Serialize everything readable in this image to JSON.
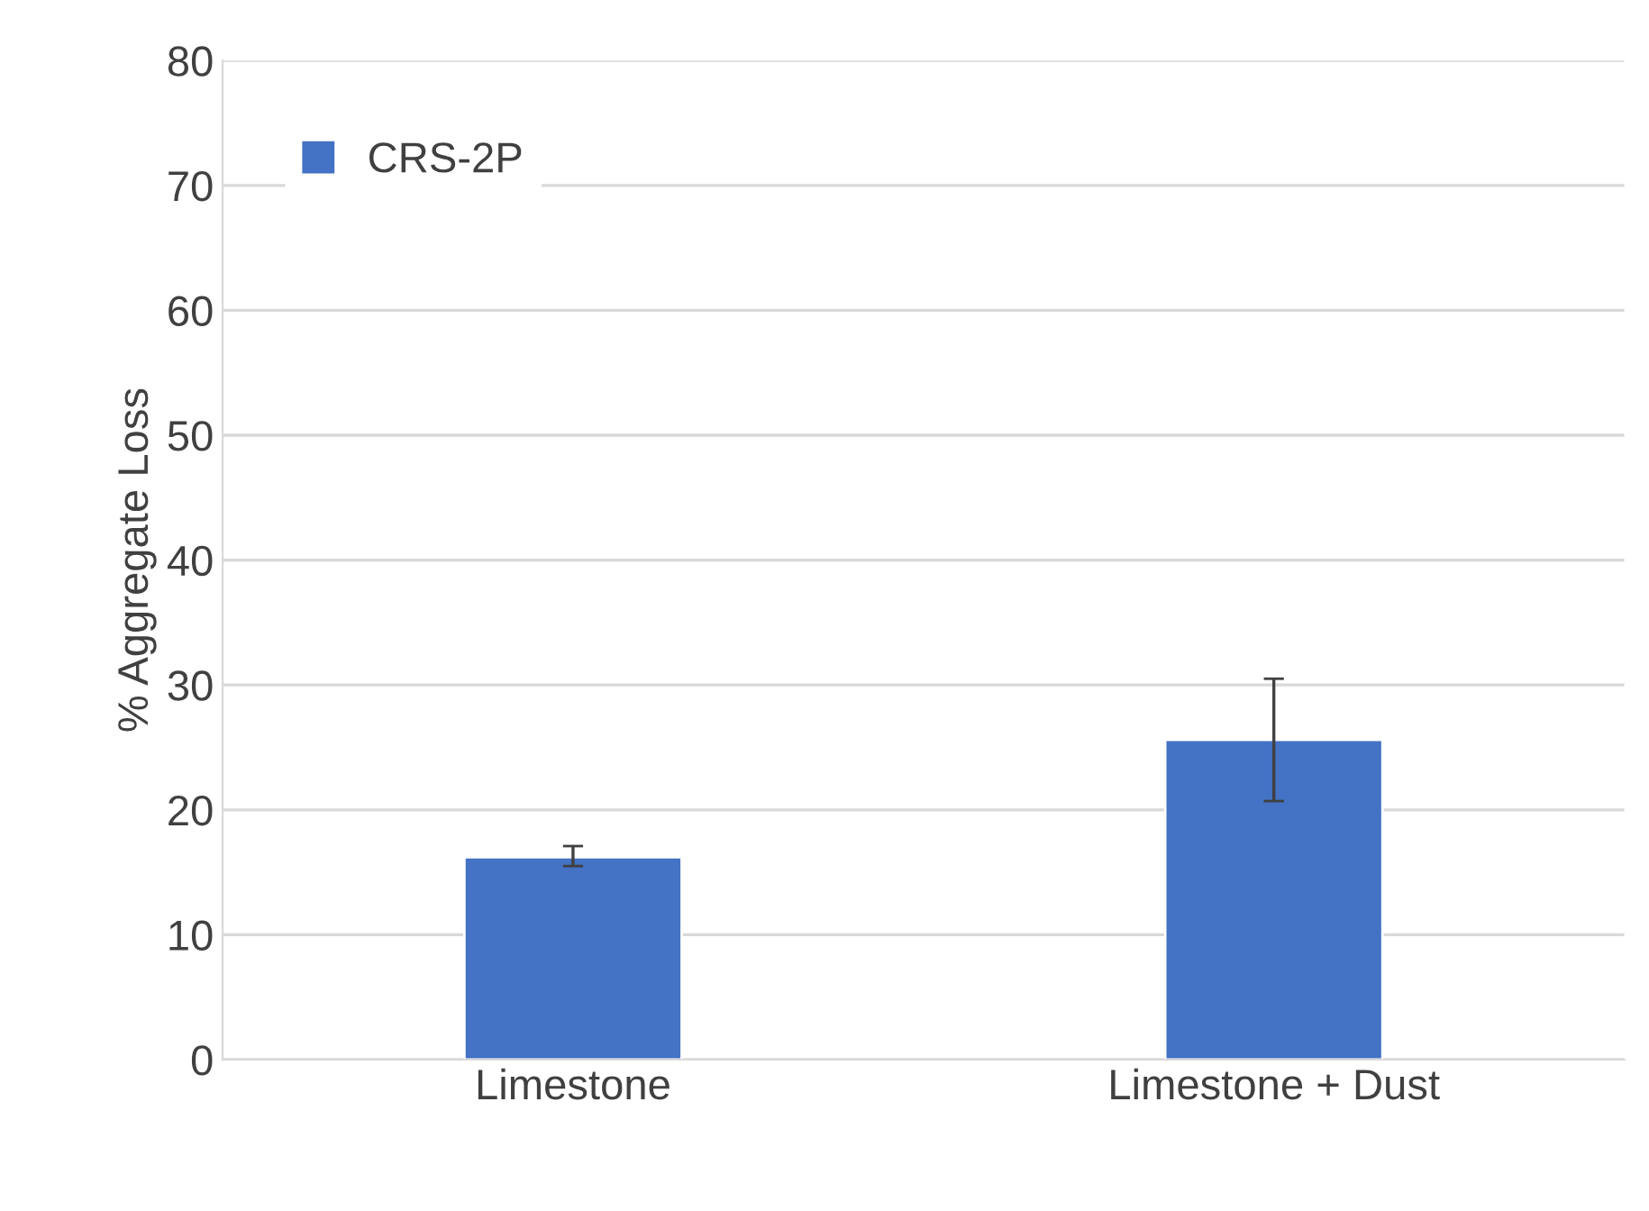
{
  "chart_data": {
    "type": "bar",
    "ylabel": "% Aggregate Loss",
    "categories": [
      "Limestone",
      "Limestone + Dust"
    ],
    "series": [
      {
        "name": "CRS-2P",
        "color": "#4472c4",
        "values": [
          16.2,
          25.6
        ],
        "errors": [
          [
            15.5,
            17.1
          ],
          [
            20.7,
            30.5
          ]
        ]
      }
    ],
    "ylim": [
      0,
      80
    ],
    "yticks": [
      0,
      10,
      20,
      30,
      40,
      50,
      60,
      70,
      80
    ],
    "grid": "y",
    "legend": "top left"
  }
}
